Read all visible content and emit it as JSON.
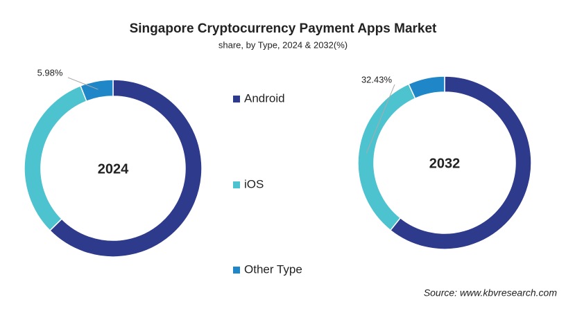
{
  "title": "Singapore Cryptocurrency Payment Apps Market",
  "subtitle": "share, by Type, 2024 & 2032(%)",
  "source": "Source: www.kbvresearch.com",
  "chart_data": [
    {
      "type": "pie",
      "title": "2024",
      "categories": [
        "Android",
        "iOS",
        "Other Type"
      ],
      "values": [
        62.6,
        31.42,
        5.98
      ],
      "value_labels": [
        null,
        null,
        "5.98%"
      ],
      "colors": [
        "#2e3a8c",
        "#4ec3d0",
        "#1f87c8"
      ]
    },
    {
      "type": "pie",
      "title": "2032",
      "categories": [
        "Android",
        "iOS",
        "Other Type"
      ],
      "values": [
        60.75,
        32.43,
        6.82
      ],
      "value_labels": [
        null,
        "32.43%",
        null
      ],
      "colors": [
        "#2e3a8c",
        "#4ec3d0",
        "#1f87c8"
      ]
    }
  ]
}
